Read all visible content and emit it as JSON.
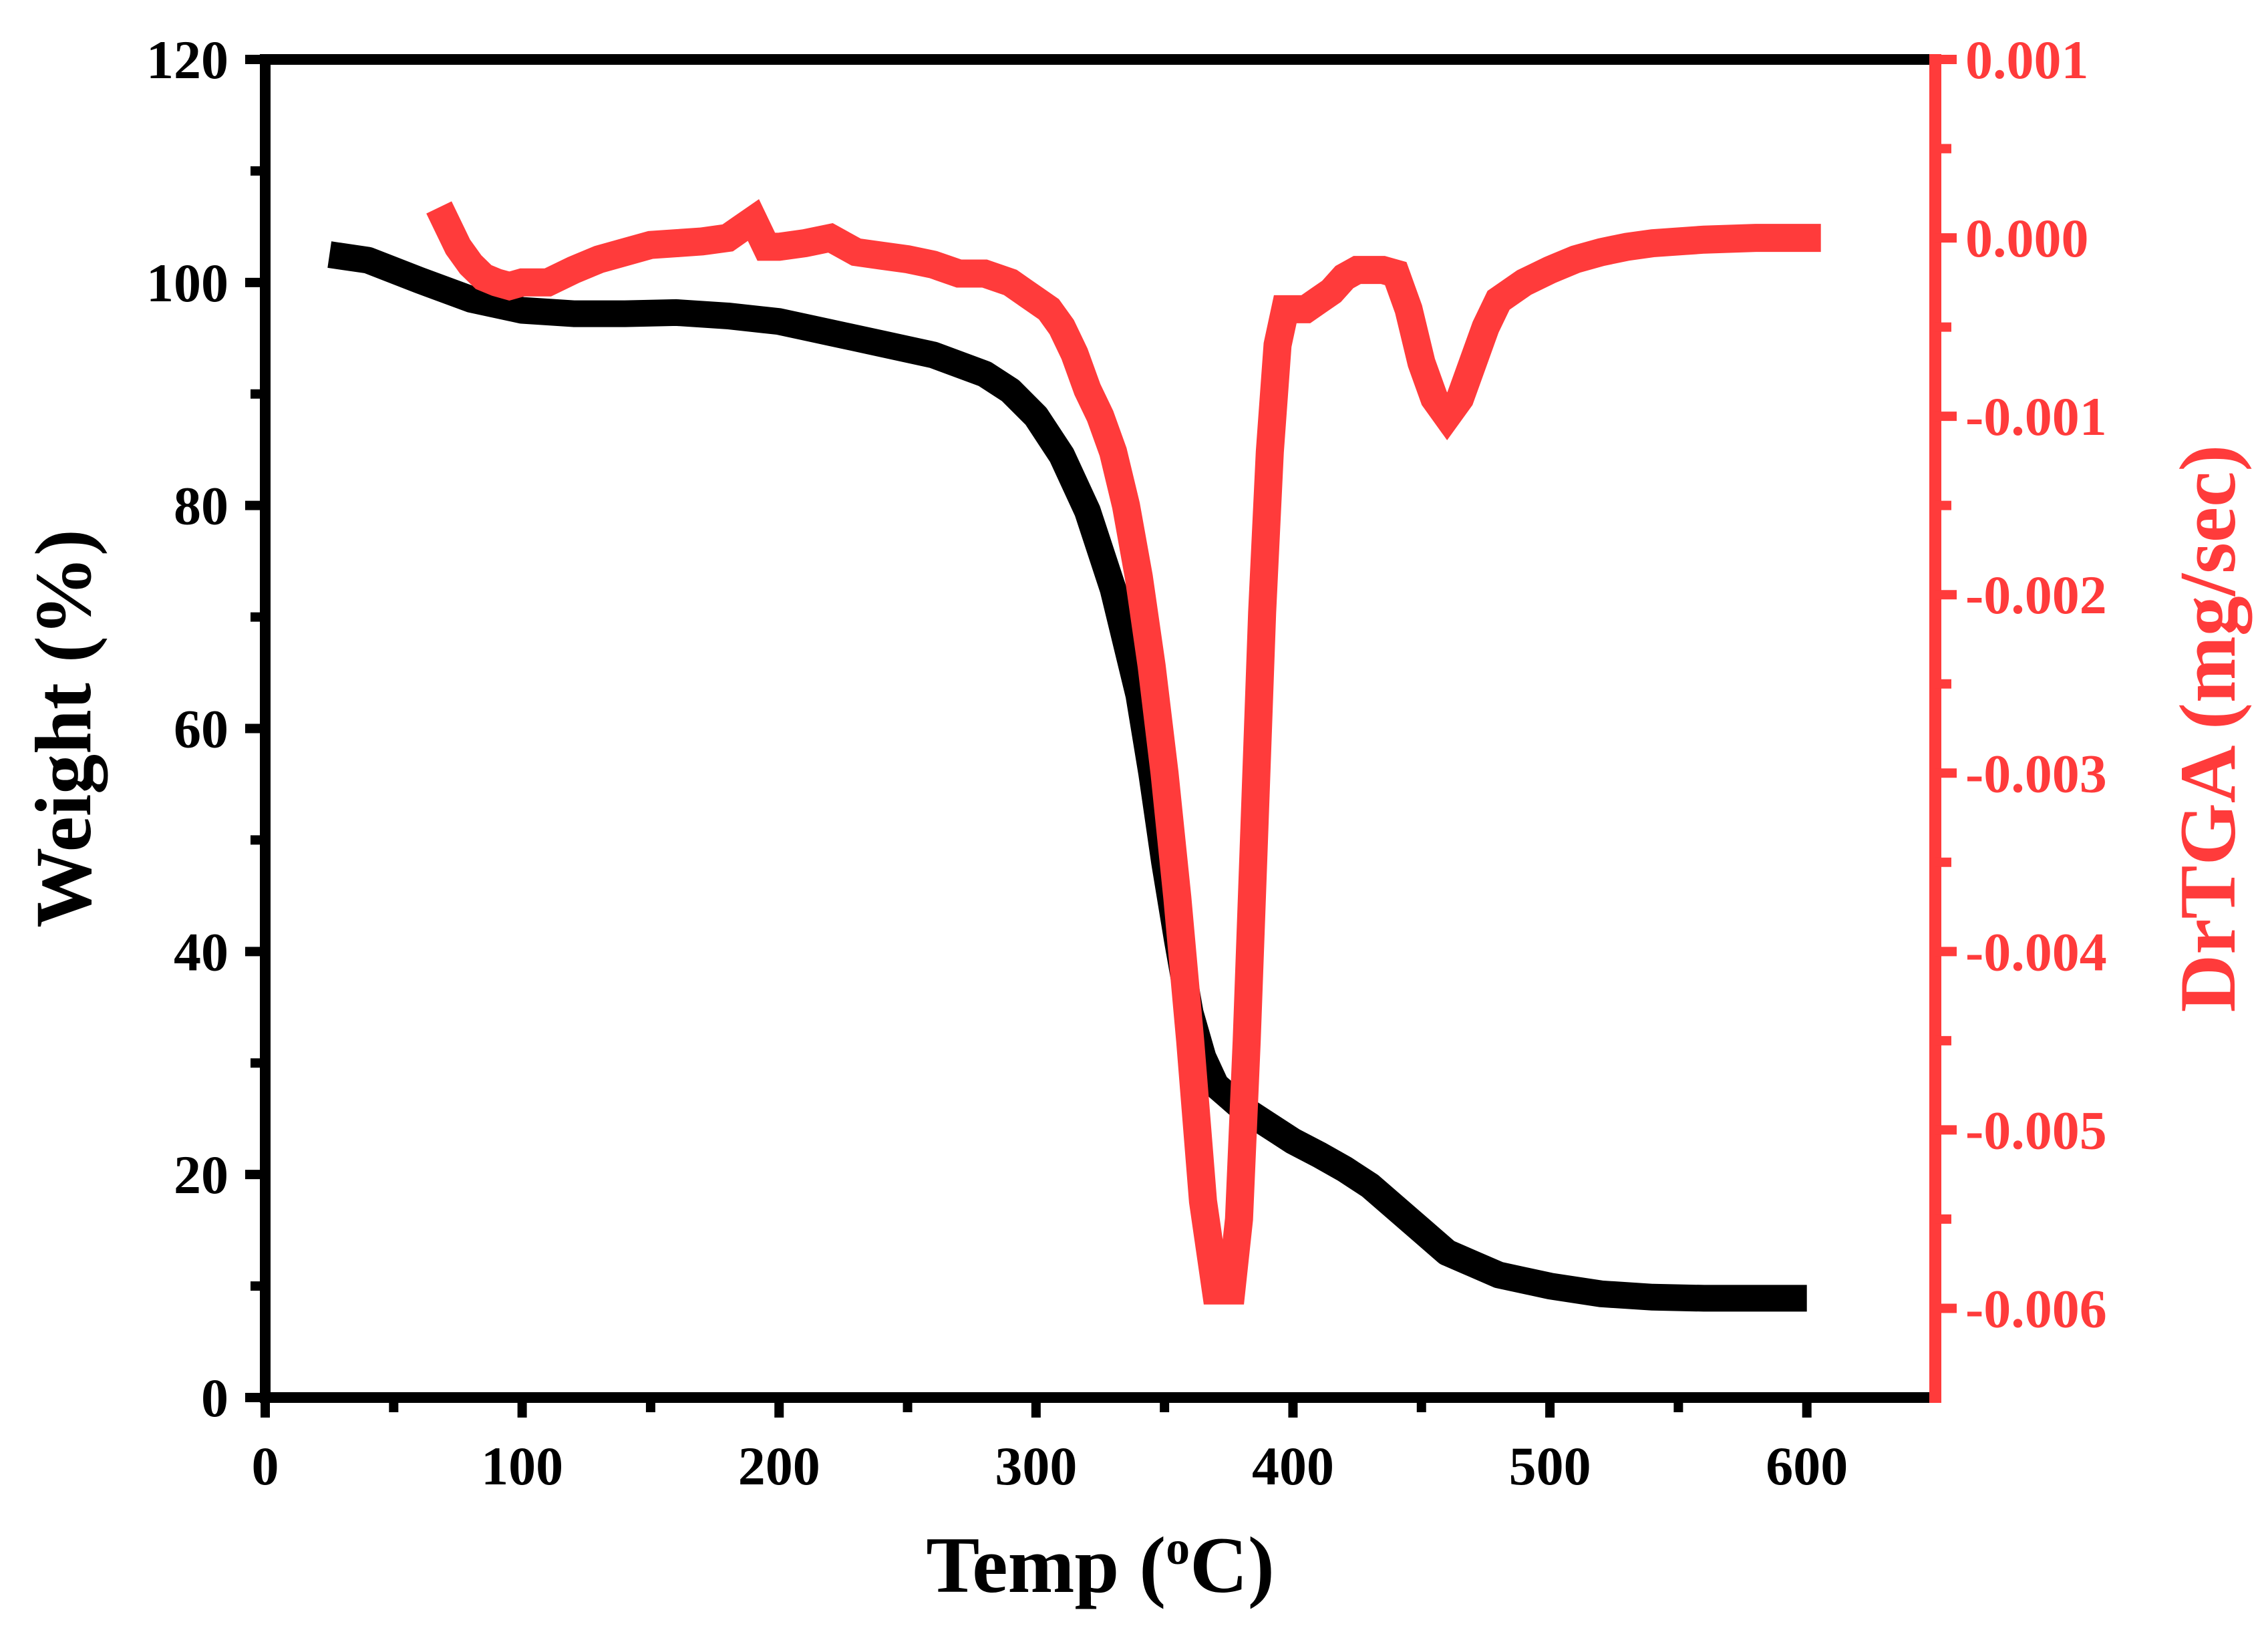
{
  "chart_data": {
    "type": "line",
    "title": "",
    "xlabel": "Temp (oC)",
    "xlabel_parts": {
      "main": "Temp (",
      "superscript": "o",
      "unit": "C)"
    },
    "ylabel": "Weight (%)",
    "y2label": "DrTGA (mg/sec)",
    "xlim": [
      0,
      650
    ],
    "ylim": [
      0,
      120
    ],
    "y2lim": [
      -0.0065,
      0.001
    ],
    "x_ticks": [
      0,
      100,
      200,
      300,
      400,
      500,
      600
    ],
    "x_tick_labels": [
      "0",
      "100",
      "200",
      "300",
      "400",
      "500",
      "600"
    ],
    "y_ticks": [
      0,
      20,
      40,
      60,
      80,
      100,
      120
    ],
    "y_tick_labels": [
      "0",
      "20",
      "40",
      "60",
      "80",
      "100",
      "120"
    ],
    "y2_ticks": [
      0.001,
      0.0,
      -0.001,
      -0.002,
      -0.003,
      -0.004,
      -0.005,
      -0.006
    ],
    "y2_tick_labels": [
      "0.001",
      "0.000",
      "-0.001",
      "-0.002",
      "-0.003",
      "-0.004",
      "-0.005",
      "-0.006"
    ],
    "grid": false,
    "series": [
      {
        "name": "Weight",
        "axis": "left",
        "color": "#000000",
        "x": [
          25,
          40,
          60,
          80,
          100,
          120,
          140,
          160,
          180,
          200,
          220,
          240,
          260,
          280,
          290,
          300,
          310,
          320,
          330,
          340,
          345,
          350,
          355,
          360,
          365,
          370,
          380,
          390,
          400,
          410,
          420,
          430,
          440,
          450,
          460,
          470,
          480,
          500,
          520,
          540,
          560,
          580,
          600
        ],
        "y": [
          102.5,
          102,
          100.2,
          98.5,
          97.5,
          97.2,
          97.2,
          97.3,
          97,
          96.5,
          95.5,
          94.5,
          93.5,
          91.8,
          90.3,
          88,
          84.5,
          79.5,
          72.5,
          63,
          56,
          48,
          41,
          34.5,
          30.5,
          28,
          26,
          24.5,
          23,
          21.8,
          20.5,
          19,
          17,
          15,
          13,
          12,
          11,
          10,
          9.3,
          9,
          8.9,
          8.9,
          8.9
        ]
      },
      {
        "name": "DrTGA",
        "axis": "right",
        "color": "#ff3b3b",
        "x": [
          70,
          75,
          80,
          85,
          90,
          95,
          100,
          110,
          120,
          130,
          140,
          150,
          160,
          170,
          180,
          185,
          190,
          195,
          200,
          210,
          220,
          230,
          240,
          250,
          260,
          270,
          280,
          290,
          295,
          300,
          305,
          310,
          315,
          320,
          325,
          330,
          335,
          340,
          345,
          350,
          355,
          360,
          365,
          370,
          373,
          376,
          379,
          382,
          385,
          388,
          391,
          394,
          397,
          400,
          405,
          410,
          415,
          420,
          425,
          430,
          435,
          440,
          445,
          450,
          455,
          460,
          465,
          470,
          475,
          480,
          490,
          500,
          510,
          520,
          530,
          540,
          560,
          580,
          600
        ],
        "y": [
          0.0001,
          -5e-05,
          -0.00015,
          -0.00022,
          -0.00025,
          -0.00027,
          -0.00025,
          -0.00025,
          -0.00018,
          -0.00012,
          -8e-05,
          -4e-05,
          -3e-05,
          -2e-05,
          0.0,
          5e-05,
          0.0001,
          -5e-05,
          -5e-05,
          -3e-05,
          0.0,
          -8e-05,
          -0.0001,
          -0.00012,
          -0.00015,
          -0.0002,
          -0.0002,
          -0.00025,
          -0.0003,
          -0.00035,
          -0.0004,
          -0.0005,
          -0.00065,
          -0.00085,
          -0.001,
          -0.0012,
          -0.0015,
          -0.0019,
          -0.0024,
          -0.003,
          -0.0037,
          -0.0045,
          -0.0054,
          -0.0059,
          -0.0059,
          -0.0059,
          -0.0055,
          -0.0045,
          -0.0033,
          -0.0021,
          -0.0012,
          -0.0006,
          -0.0004,
          -0.0004,
          -0.0004,
          -0.00035,
          -0.0003,
          -0.00022,
          -0.00018,
          -0.00018,
          -0.00018,
          -0.0002,
          -0.0004,
          -0.0007,
          -0.0009,
          -0.001,
          -0.0009,
          -0.0007,
          -0.0005,
          -0.00035,
          -0.00025,
          -0.00018,
          -0.00012,
          -8e-05,
          -5e-05,
          -3e-05,
          -1e-05,
          0.0,
          0.0
        ]
      }
    ]
  }
}
